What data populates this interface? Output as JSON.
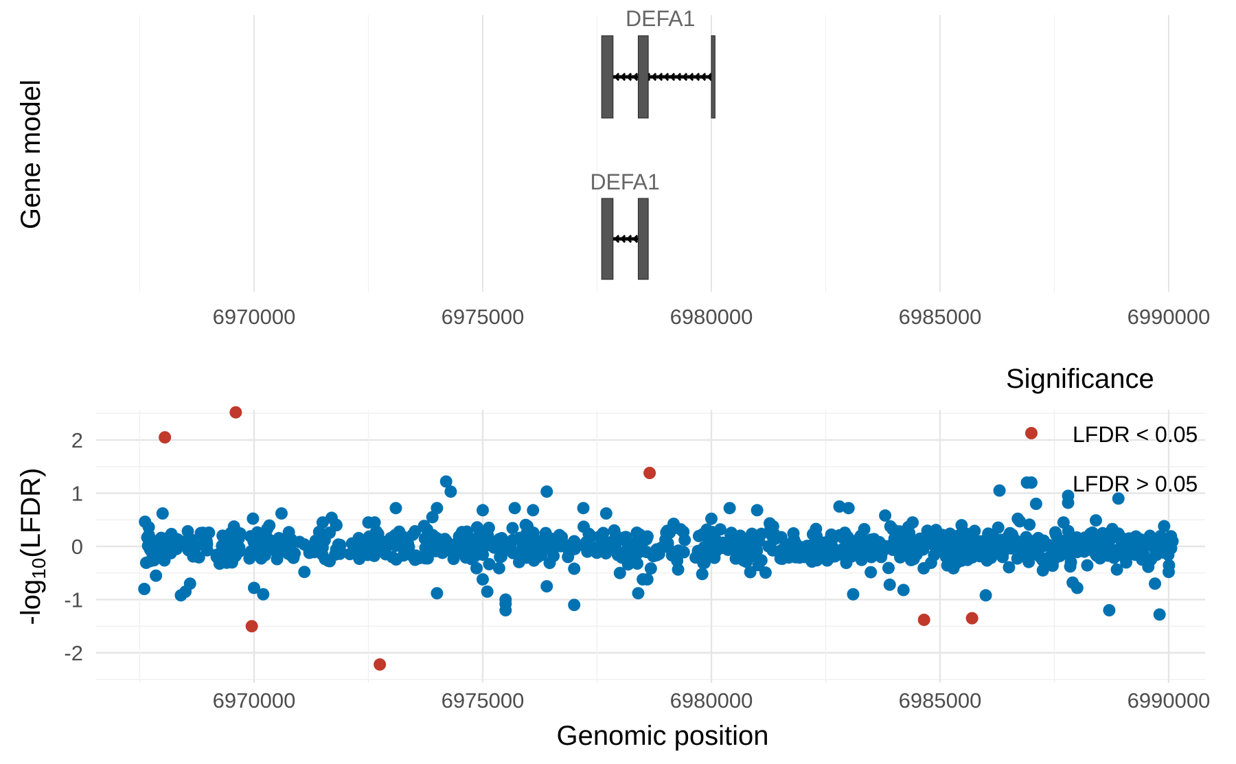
{
  "figure": {
    "gene_panel": {
      "ylabel": "Gene model",
      "xticks": [
        6970000,
        6975000,
        6980000,
        6985000,
        6990000
      ],
      "tracks": [
        {
          "label": "DEFA1",
          "strand": "-",
          "exons": [
            [
              6977600,
              6977850
            ],
            [
              6978400,
              6978620
            ],
            [
              6980000,
              6980080
            ]
          ],
          "utr": [
            [
              6978620,
              6978650
            ]
          ]
        },
        {
          "label": "DEFA1",
          "strand": "-",
          "exons": [
            [
              6977600,
              6977850
            ],
            [
              6978400,
              6978620
            ]
          ],
          "utr": []
        }
      ]
    },
    "scatter_panel": {
      "xlabel": "Genomic position",
      "ylabel_main": "-log",
      "ylabel_sub": "10",
      "ylabel_tail": "(LFDR)",
      "xticks": [
        6970000,
        6975000,
        6980000,
        6985000,
        6990000
      ],
      "yticks": [
        -2,
        -1,
        0,
        1,
        2
      ],
      "legend": {
        "title": "Significance",
        "items": [
          {
            "label": "LFDR < 0.05",
            "color": "#c0392b"
          },
          {
            "label": "LFDR > 0.05",
            "color": "#0072b2"
          }
        ]
      }
    }
  },
  "chart_data": [
    {
      "type": "gene-model",
      "xlim": [
        6967000,
        6990800
      ],
      "xticks": [
        6970000,
        6975000,
        6980000,
        6985000,
        6990000
      ],
      "genes": [
        {
          "name": "DEFA1",
          "track": 1,
          "strand": "-",
          "start": 6977600,
          "end": 6980080
        },
        {
          "name": "DEFA1",
          "track": 2,
          "strand": "-",
          "start": 6977600,
          "end": 6978620
        }
      ]
    },
    {
      "type": "scatter",
      "xlabel": "Genomic position",
      "ylabel": "-log10(LFDR)",
      "xlim": [
        6967000,
        6990800
      ],
      "ylim": [
        -2.4,
        2.7
      ],
      "grid": true,
      "legend_position": "top-right",
      "series": [
        {
          "name": "LFDR < 0.05",
          "color": "#c0392b",
          "points": [
            [
              6968050,
              2.05
            ],
            [
              6969600,
              2.52
            ],
            [
              6969950,
              -1.5
            ],
            [
              6972750,
              -2.22
            ],
            [
              6978650,
              1.38
            ],
            [
              6984650,
              -1.38
            ],
            [
              6985700,
              -1.35
            ]
          ]
        },
        {
          "name": "LFDR > 0.05",
          "color": "#0072b2",
          "points": [
            [
              6967600,
              -0.8
            ],
            [
              6968000,
              0.62
            ],
            [
              6968400,
              -0.92
            ],
            [
              6968500,
              -0.85
            ],
            [
              6968600,
              -0.7
            ],
            [
              6970000,
              -0.78
            ],
            [
              6970200,
              -0.9
            ],
            [
              6970600,
              0.62
            ],
            [
              6971100,
              -0.48
            ],
            [
              6971500,
              0.45
            ],
            [
              6972500,
              0.45
            ],
            [
              6973100,
              0.72
            ],
            [
              6973900,
              0.55
            ],
            [
              6974000,
              0.72
            ],
            [
              6974000,
              -0.88
            ],
            [
              6974200,
              1.22
            ],
            [
              6974300,
              1.03
            ],
            [
              6975000,
              0.68
            ],
            [
              6975000,
              -0.62
            ],
            [
              6975100,
              -0.85
            ],
            [
              6975500,
              -1.0
            ],
            [
              6975500,
              -1.08
            ],
            [
              6975500,
              -1.2
            ],
            [
              6975700,
              0.72
            ],
            [
              6976100,
              0.68
            ],
            [
              6976400,
              1.03
            ],
            [
              6976400,
              -0.75
            ],
            [
              6977000,
              -1.1
            ],
            [
              6977000,
              -0.42
            ],
            [
              6977200,
              0.72
            ],
            [
              6977700,
              0.62
            ],
            [
              6978000,
              -0.5
            ],
            [
              6978400,
              -0.88
            ],
            [
              6978500,
              -0.62
            ],
            [
              6978600,
              -0.62
            ],
            [
              6979200,
              0.35
            ],
            [
              6979800,
              -0.52
            ],
            [
              6980000,
              0.52
            ],
            [
              6980400,
              0.72
            ],
            [
              6981000,
              0.68
            ],
            [
              6982800,
              0.75
            ],
            [
              6983000,
              0.72
            ],
            [
              6983100,
              -0.9
            ],
            [
              6983800,
              0.58
            ],
            [
              6983900,
              -0.72
            ],
            [
              6984200,
              -0.82
            ],
            [
              6984400,
              0.45
            ],
            [
              6986000,
              -0.92
            ],
            [
              6986300,
              1.05
            ],
            [
              6986700,
              0.52
            ],
            [
              6986900,
              1.2
            ],
            [
              6987100,
              0.8
            ],
            [
              6987700,
              0.45
            ],
            [
              6987800,
              0.95
            ],
            [
              6987800,
              0.82
            ],
            [
              6987900,
              -0.68
            ],
            [
              6988000,
              -0.78
            ],
            [
              6988700,
              -1.2
            ],
            [
              6988900,
              0.9
            ],
            [
              6989700,
              -0.7
            ],
            [
              6989800,
              -1.28
            ],
            [
              6989900,
              0.38
            ],
            [
              6990000,
              -0.48
            ]
          ]
        }
      ]
    }
  ]
}
